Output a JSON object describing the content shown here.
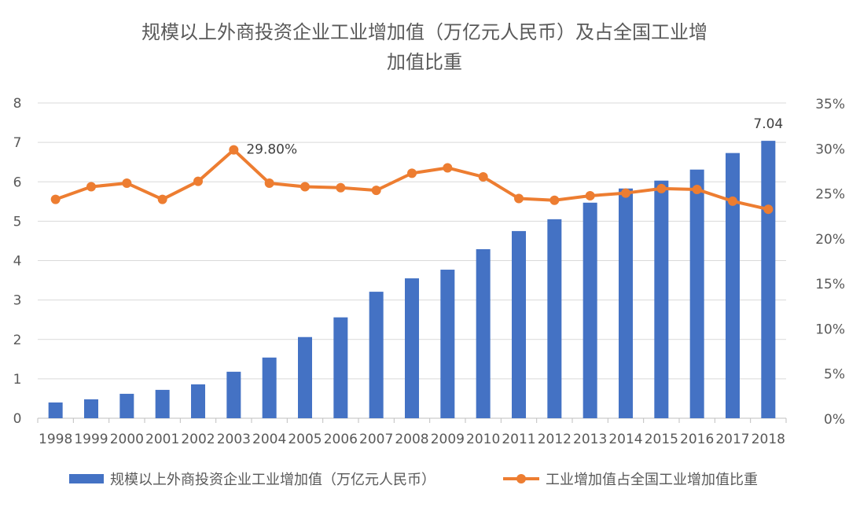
{
  "chart_data": {
    "type": "bar+line",
    "title": "规模以上外商投资企业工业增加值（万亿元人民币）及占全国工业增加值比重",
    "title_lines": [
      "规模以上外商投资企业工业增加值（万亿元人民币）及占全国工业增",
      "加值比重"
    ],
    "categories": [
      "1998",
      "1999",
      "2000",
      "2001",
      "2002",
      "2003",
      "2004",
      "2005",
      "2006",
      "2007",
      "2008",
      "2009",
      "2010",
      "2011",
      "2012",
      "2013",
      "2014",
      "2015",
      "2016",
      "2017",
      "2018"
    ],
    "series": [
      {
        "name": "规模以上外商投资企业工业增加值（万亿元人民币）",
        "type": "bar",
        "axis": "left",
        "color": "#4472C4",
        "values": [
          0.4,
          0.48,
          0.62,
          0.72,
          0.86,
          1.18,
          1.54,
          2.06,
          2.56,
          3.21,
          3.55,
          3.77,
          4.29,
          4.75,
          5.05,
          5.47,
          5.83,
          6.03,
          6.31,
          6.73,
          7.04
        ]
      },
      {
        "name": "工业增加值占全国工业增加值比重",
        "type": "line",
        "axis": "right",
        "unit": "%",
        "color": "#ED7D31",
        "values": [
          24.3,
          25.7,
          26.1,
          24.3,
          26.3,
          29.8,
          26.1,
          25.7,
          25.6,
          25.3,
          27.2,
          27.8,
          26.8,
          24.4,
          24.2,
          24.7,
          25.0,
          25.5,
          25.4,
          24.1,
          23.2
        ]
      }
    ],
    "y_left": {
      "range": [
        0,
        8
      ],
      "ticks": [
        "0",
        "1",
        "2",
        "3",
        "4",
        "5",
        "6",
        "7",
        "8"
      ]
    },
    "y_right": {
      "range": [
        0,
        35
      ],
      "ticks": [
        "0%",
        "5%",
        "10%",
        "15%",
        "20%",
        "25%",
        "30%",
        "35%"
      ]
    },
    "annotations": [
      {
        "category": "2003",
        "series": 1,
        "text": "29.80%"
      },
      {
        "category": "2018",
        "series": 0,
        "text": "7.04"
      }
    ],
    "grid": true,
    "legend": "bottom"
  }
}
